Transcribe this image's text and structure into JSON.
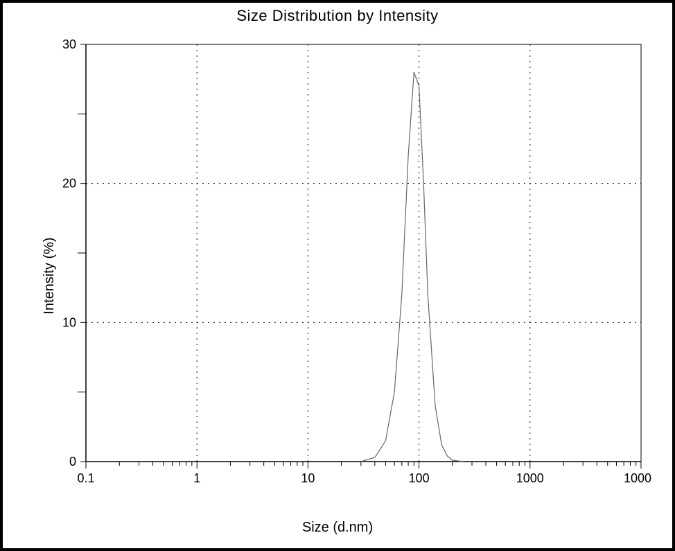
{
  "chart": {
    "type": "line",
    "title": "Size Distribution by Intensity",
    "title_fontsize": 22,
    "title_color": "#000000",
    "xlabel": "Size (d.nm)",
    "ylabel": "Intensity (%)",
    "label_fontsize": 20,
    "label_color": "#000000",
    "tick_fontsize": 18,
    "background_color": "#ffffff",
    "border_color": "#000000",
    "grid_color": "#000000",
    "grid_dash": "2 6",
    "line_color": "#666666",
    "line_width": 1.2,
    "x_scale": "log",
    "xlim": [
      0.1,
      10000
    ],
    "x_ticks": [
      0.1,
      1,
      10,
      100,
      1000,
      10000
    ],
    "x_tick_labels": [
      "0.1",
      "1",
      "10",
      "100",
      "1000",
      "10000"
    ],
    "y_scale": "linear",
    "ylim": [
      0,
      30
    ],
    "y_ticks": [
      0,
      10,
      20,
      30
    ],
    "y_tick_labels": [
      "0",
      "10",
      "20",
      "30"
    ],
    "y_minor_ticks": [
      5,
      15,
      25
    ],
    "series": {
      "x": [
        30,
        40,
        50,
        60,
        70,
        80,
        90,
        100,
        110,
        120,
        140,
        160,
        180,
        200,
        250
      ],
      "y": [
        0,
        0.3,
        1.5,
        5,
        12,
        22,
        28,
        27,
        20,
        12,
        4,
        1.2,
        0.4,
        0.1,
        0
      ]
    }
  }
}
